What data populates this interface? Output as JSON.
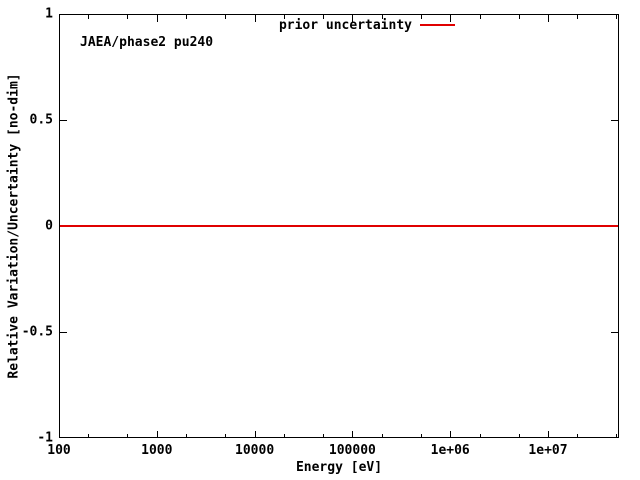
{
  "figure": {
    "background_color": "#ffffff",
    "annotation": "JAEA/phase2 pu240",
    "legend": {
      "label": "prior uncertainty",
      "sample_color": "#e00000"
    }
  },
  "chart_data": {
    "type": "line",
    "title": "",
    "xlabel": "Energy [eV]",
    "ylabel": "Relative Variation/Uncertainty [no-dim]",
    "xscale": "log",
    "yscale": "linear",
    "xlim": [
      100,
      50000000
    ],
    "ylim": [
      -1,
      1
    ],
    "x_ticks": [
      100,
      1000,
      10000,
      100000,
      1000000,
      10000000
    ],
    "x_tick_labels": [
      "100",
      "1000",
      "10000",
      "100000",
      "1e+06",
      "1e+07"
    ],
    "x_minor_tick_multiples": [
      2,
      5
    ],
    "y_ticks": [
      1,
      0.5,
      0,
      -0.5,
      -1
    ],
    "y_tick_labels": [
      "1",
      "0.5",
      "0",
      "-0.5",
      "-1"
    ],
    "grid": false,
    "legend_position": "top-right-inside",
    "series": [
      {
        "name": "prior uncertainty",
        "color": "#e00000",
        "x": [
          100,
          50000000
        ],
        "y": [
          0,
          0
        ]
      }
    ],
    "annotations": [
      {
        "text": "JAEA/phase2 pu240"
      }
    ]
  }
}
